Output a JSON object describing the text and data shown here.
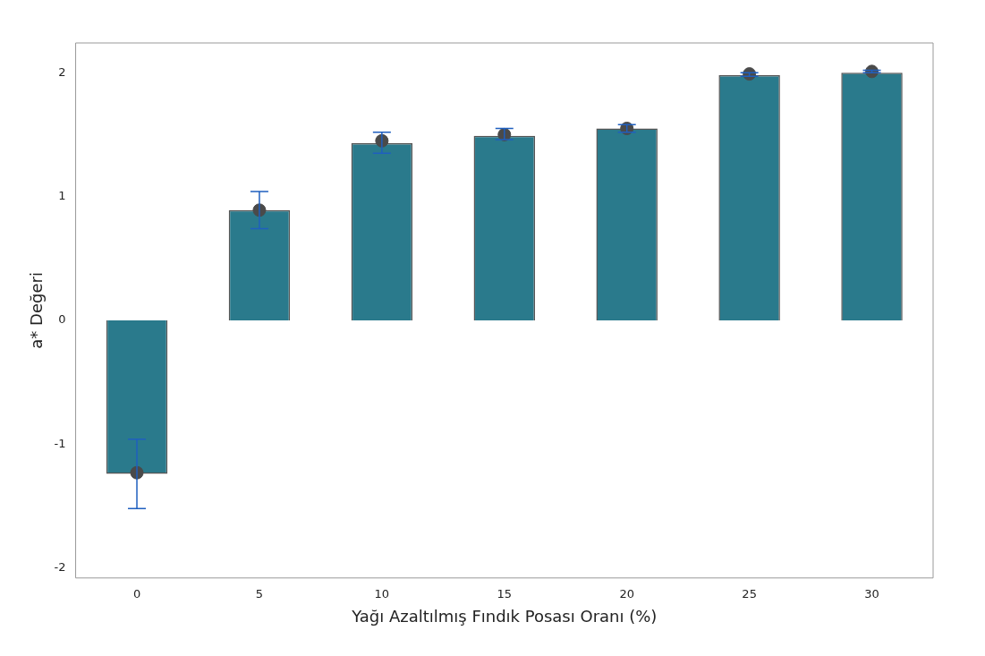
{
  "chart_data": {
    "type": "bar",
    "xlabel": "Yağı Azaltılmış Fındık Posası Oranı (%)",
    "ylabel": "a* Değeri",
    "categories": [
      "0",
      "5",
      "10",
      "15",
      "20",
      "25",
      "30"
    ],
    "ylim": [
      -2.08,
      2.24
    ],
    "yticks": [
      -2,
      -1,
      0,
      1,
      2
    ],
    "grid": false,
    "legend": false,
    "series": [
      {
        "color": "#2a7a8c",
        "values": [
          -1.24,
          0.89,
          1.43,
          1.49,
          1.55,
          1.98,
          2.0
        ],
        "errors": [
          [
            -1.52,
            -0.96
          ],
          [
            0.74,
            1.04
          ],
          [
            1.35,
            1.52
          ],
          [
            1.46,
            1.55
          ],
          [
            1.52,
            1.58
          ],
          [
            1.97,
            2.0
          ],
          [
            2.0,
            2.02
          ]
        ]
      },
      {
        "type": "scatter",
        "color": "#4a4a4a",
        "marker": "circle",
        "x": [
          "0",
          "5",
          "10",
          "15",
          "20",
          "25",
          "30"
        ],
        "values": [
          -1.23,
          0.89,
          1.45,
          1.5,
          1.55,
          1.99,
          2.01
        ]
      }
    ]
  }
}
